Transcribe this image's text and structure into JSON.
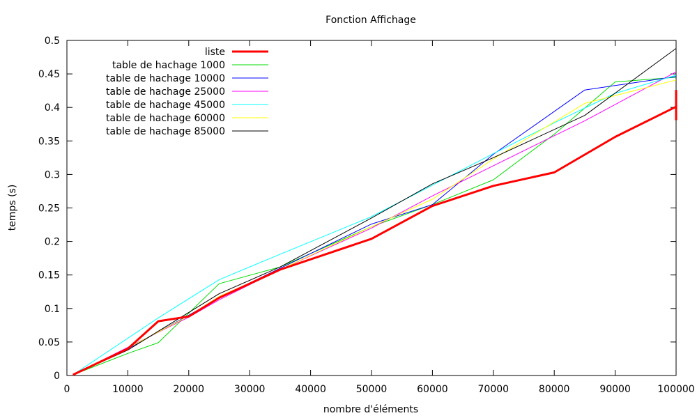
{
  "chart_data": {
    "type": "line",
    "title": "Fonction Affichage",
    "xlabel": "nombre d'éléments",
    "ylabel": "temps (s)",
    "xlim": [
      0,
      100000
    ],
    "ylim": [
      0,
      0.5
    ],
    "grid": false,
    "legend_position": "top-left",
    "x_ticks": [
      0,
      10000,
      20000,
      30000,
      40000,
      50000,
      60000,
      70000,
      80000,
      90000,
      100000
    ],
    "x_tick_labels": [
      "0",
      "10000",
      "20000",
      "30000",
      "40000",
      "50000",
      "60000",
      "70000",
      "80000",
      "90000",
      "100000"
    ],
    "y_ticks": [
      0,
      0.05,
      0.1,
      0.15,
      0.2,
      0.25,
      0.3,
      0.35,
      0.4,
      0.45,
      0.5
    ],
    "y_tick_labels": [
      "0",
      "0.05",
      "0.1",
      "0.15",
      "0.2",
      "0.25",
      "0.3",
      "0.35",
      "0.4",
      "0.45",
      "0.5"
    ],
    "series": [
      {
        "name": "liste",
        "color": "#ff0000",
        "thick": true,
        "points": [
          [
            1000,
            0.001
          ],
          [
            10000,
            0.04
          ],
          [
            15000,
            0.081
          ],
          [
            20000,
            0.088
          ],
          [
            25000,
            0.116
          ],
          [
            35000,
            0.158
          ],
          [
            50000,
            0.204
          ],
          [
            60000,
            0.253
          ],
          [
            70000,
            0.283
          ],
          [
            80000,
            0.303
          ],
          [
            90000,
            0.356
          ],
          [
            100000,
            0.401
          ]
        ]
      },
      {
        "name": "table de hachage 1000",
        "color": "#00dd00",
        "thick": false,
        "points": [
          [
            1000,
            0.001
          ],
          [
            10000,
            0.033
          ],
          [
            15000,
            0.049
          ],
          [
            20000,
            0.093
          ],
          [
            25000,
            0.137
          ],
          [
            35000,
            0.162
          ],
          [
            50000,
            0.222
          ],
          [
            60000,
            0.255
          ],
          [
            70000,
            0.292
          ],
          [
            80000,
            0.36
          ],
          [
            90000,
            0.438
          ],
          [
            100000,
            0.445
          ]
        ]
      },
      {
        "name": "table de hachage 10000",
        "color": "#0000ff",
        "thick": false,
        "points": [
          [
            1000,
            0.001
          ],
          [
            10000,
            0.04
          ],
          [
            20000,
            0.09
          ],
          [
            25000,
            0.116
          ],
          [
            35000,
            0.16
          ],
          [
            50000,
            0.226
          ],
          [
            60000,
            0.255
          ],
          [
            70000,
            0.33
          ],
          [
            85000,
            0.426
          ],
          [
            100000,
            0.446
          ]
        ]
      },
      {
        "name": "table de hachage 25000",
        "color": "#ff00ff",
        "thick": false,
        "points": [
          [
            1000,
            0.001
          ],
          [
            10000,
            0.042
          ],
          [
            20000,
            0.087
          ],
          [
            25000,
            0.113
          ],
          [
            35000,
            0.158
          ],
          [
            50000,
            0.22
          ],
          [
            60000,
            0.268
          ],
          [
            70000,
            0.313
          ],
          [
            85000,
            0.38
          ],
          [
            100000,
            0.453
          ]
        ]
      },
      {
        "name": "table de hachage 45000",
        "color": "#00ffff",
        "thick": false,
        "points": [
          [
            1000,
            0.001
          ],
          [
            15000,
            0.086
          ],
          [
            25000,
            0.143
          ],
          [
            35000,
            0.181
          ],
          [
            50000,
            0.237
          ],
          [
            60000,
            0.284
          ],
          [
            70000,
            0.331
          ],
          [
            80000,
            0.377
          ],
          [
            90000,
            0.421
          ],
          [
            100000,
            0.448
          ]
        ]
      },
      {
        "name": "table de hachage 60000",
        "color": "#ffff00",
        "thick": false,
        "points": [
          [
            1000,
            0.001
          ],
          [
            10000,
            0.041
          ],
          [
            20000,
            0.089
          ],
          [
            25000,
            0.118
          ],
          [
            35000,
            0.158
          ],
          [
            50000,
            0.222
          ],
          [
            60000,
            0.263
          ],
          [
            70000,
            0.323
          ],
          [
            85000,
            0.406
          ],
          [
            100000,
            0.441
          ]
        ]
      },
      {
        "name": "table de hachage 85000",
        "color": "#000000",
        "thick": false,
        "points": [
          [
            1000,
            0.001
          ],
          [
            10000,
            0.038
          ],
          [
            25000,
            0.122
          ],
          [
            35000,
            0.162
          ],
          [
            50000,
            0.235
          ],
          [
            60000,
            0.286
          ],
          [
            70000,
            0.325
          ],
          [
            85000,
            0.388
          ],
          [
            100000,
            0.488
          ]
        ]
      }
    ]
  }
}
